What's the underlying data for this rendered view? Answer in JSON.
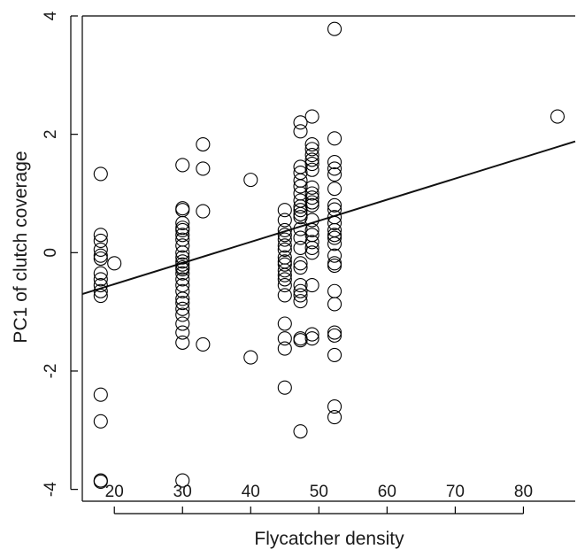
{
  "chart_data": {
    "type": "scatter",
    "xlabel": "Flycatcher density",
    "ylabel": "PC1 of clutch coverage",
    "xlim": [
      15.3,
      87.6
    ],
    "ylim": [
      -4.2,
      4.0
    ],
    "xticks": [
      20,
      30,
      40,
      50,
      60,
      70,
      80
    ],
    "yticks": [
      -4,
      -2,
      0,
      2,
      4
    ],
    "x_tick_labels": [
      "20",
      "30",
      "40",
      "50",
      "60",
      "70",
      "80"
    ],
    "y_tick_labels": [
      "-4",
      "-2",
      "0",
      "2",
      "4"
    ],
    "grid": false,
    "trend_line": {
      "x": [
        15.3,
        87.6
      ],
      "y": [
        -0.7,
        1.88
      ]
    },
    "points": [
      [
        18,
        1.33
      ],
      [
        18,
        0.3
      ],
      [
        18,
        0.2
      ],
      [
        18,
        0.05
      ],
      [
        18,
        -0.05
      ],
      [
        18,
        -0.1
      ],
      [
        18,
        -0.35
      ],
      [
        18,
        -0.45
      ],
      [
        18,
        -0.55
      ],
      [
        18,
        -0.65
      ],
      [
        18,
        -0.73
      ],
      [
        18,
        -2.4
      ],
      [
        18,
        -2.85
      ],
      [
        18,
        -3.85
      ],
      [
        18,
        -3.87
      ],
      [
        20,
        -0.18
      ],
      [
        30,
        1.48
      ],
      [
        30,
        0.75
      ],
      [
        30,
        0.72
      ],
      [
        30,
        0.5
      ],
      [
        30,
        0.42
      ],
      [
        30,
        0.38
      ],
      [
        30,
        0.3
      ],
      [
        30,
        0.22
      ],
      [
        30,
        0.12
      ],
      [
        30,
        0.0
      ],
      [
        30,
        -0.08
      ],
      [
        30,
        -0.15
      ],
      [
        30,
        -0.2
      ],
      [
        30,
        -0.25
      ],
      [
        30,
        -0.28
      ],
      [
        30,
        -0.35
      ],
      [
        30,
        -0.45
      ],
      [
        30,
        -0.55
      ],
      [
        30,
        -0.65
      ],
      [
        30,
        -0.78
      ],
      [
        30,
        -0.85
      ],
      [
        30,
        -0.95
      ],
      [
        30,
        -1.05
      ],
      [
        30,
        -1.2
      ],
      [
        30,
        -1.35
      ],
      [
        30,
        -1.52
      ],
      [
        30,
        -3.85
      ],
      [
        33,
        1.83
      ],
      [
        33,
        1.42
      ],
      [
        33,
        0.7
      ],
      [
        33,
        -1.55
      ],
      [
        40,
        1.23
      ],
      [
        40,
        -1.77
      ],
      [
        45,
        0.72
      ],
      [
        45,
        0.55
      ],
      [
        45,
        0.38
      ],
      [
        45,
        0.3
      ],
      [
        45,
        0.22
      ],
      [
        45,
        0.12
      ],
      [
        45,
        0.05
      ],
      [
        45,
        -0.08
      ],
      [
        45,
        -0.15
      ],
      [
        45,
        -0.2
      ],
      [
        45,
        -0.3
      ],
      [
        45,
        -0.38
      ],
      [
        45,
        -0.45
      ],
      [
        45,
        -0.55
      ],
      [
        45,
        -0.72
      ],
      [
        45,
        -1.2
      ],
      [
        45,
        -1.45
      ],
      [
        45,
        -1.62
      ],
      [
        45,
        -2.28
      ],
      [
        47.3,
        2.2
      ],
      [
        47.3,
        2.05
      ],
      [
        47.3,
        1.45
      ],
      [
        47.3,
        1.35
      ],
      [
        47.3,
        1.22
      ],
      [
        47.3,
        1.12
      ],
      [
        47.3,
        1.0
      ],
      [
        47.3,
        0.88
      ],
      [
        47.3,
        0.78
      ],
      [
        47.3,
        0.72
      ],
      [
        47.3,
        0.65
      ],
      [
        47.3,
        0.6
      ],
      [
        47.3,
        0.4
      ],
      [
        47.3,
        0.25
      ],
      [
        47.3,
        0.08
      ],
      [
        47.3,
        -0.18
      ],
      [
        47.3,
        -0.25
      ],
      [
        47.3,
        -0.55
      ],
      [
        47.3,
        -0.65
      ],
      [
        47.3,
        -0.72
      ],
      [
        47.3,
        -0.82
      ],
      [
        47.3,
        -1.45
      ],
      [
        47.3,
        -1.48
      ],
      [
        47.3,
        -3.02
      ],
      [
        49,
        2.3
      ],
      [
        49,
        1.83
      ],
      [
        49,
        1.75
      ],
      [
        49,
        1.65
      ],
      [
        49,
        1.57
      ],
      [
        49,
        1.5
      ],
      [
        49,
        1.4
      ],
      [
        49,
        1.1
      ],
      [
        49,
        1.0
      ],
      [
        49,
        0.93
      ],
      [
        49,
        0.85
      ],
      [
        49,
        0.8
      ],
      [
        49,
        0.55
      ],
      [
        49,
        0.38
      ],
      [
        49,
        0.3
      ],
      [
        49,
        0.18
      ],
      [
        49,
        0.08
      ],
      [
        49,
        0.0
      ],
      [
        49,
        -0.55
      ],
      [
        49,
        -1.38
      ],
      [
        49,
        -1.45
      ],
      [
        52.3,
        3.78
      ],
      [
        52.3,
        1.93
      ],
      [
        52.3,
        1.53
      ],
      [
        52.3,
        1.42
      ],
      [
        52.3,
        1.32
      ],
      [
        52.3,
        1.08
      ],
      [
        52.3,
        0.8
      ],
      [
        52.3,
        0.73
      ],
      [
        52.3,
        0.6
      ],
      [
        52.3,
        0.5
      ],
      [
        52.3,
        0.38
      ],
      [
        52.3,
        0.3
      ],
      [
        52.3,
        0.25
      ],
      [
        52.3,
        0.15
      ],
      [
        52.3,
        -0.05
      ],
      [
        52.3,
        -0.18
      ],
      [
        52.3,
        -0.22
      ],
      [
        52.3,
        -0.65
      ],
      [
        52.3,
        -0.87
      ],
      [
        52.3,
        -1.35
      ],
      [
        52.3,
        -1.4
      ],
      [
        52.3,
        -1.73
      ],
      [
        52.3,
        -2.6
      ],
      [
        52.3,
        -2.78
      ],
      [
        85,
        2.3
      ]
    ]
  }
}
